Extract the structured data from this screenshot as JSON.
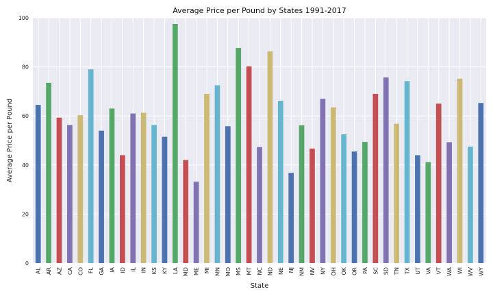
{
  "chart_data": {
    "type": "bar",
    "title": "Average Price per Pound by States 1991-2017",
    "xlabel": "State",
    "ylabel": "Average Price per Pound",
    "ylim": [
      0,
      100
    ],
    "yticks": [
      0,
      20,
      40,
      60,
      80,
      100
    ],
    "grid": true,
    "categories": [
      "AL",
      "AR",
      "AZ",
      "CA",
      "CO",
      "FL",
      "GA",
      "IA",
      "ID",
      "IL",
      "IN",
      "KS",
      "KY",
      "LA",
      "MD",
      "ME",
      "MI",
      "MN",
      "MO",
      "MS",
      "MT",
      "NC",
      "ND",
      "NE",
      "NJ",
      "NM",
      "NV",
      "NY",
      "OH",
      "OK",
      "OR",
      "PA",
      "SC",
      "SD",
      "TN",
      "TX",
      "UT",
      "VA",
      "VT",
      "WA",
      "WI",
      "WV",
      "WY"
    ],
    "values": [
      64.5,
      73.5,
      59.3,
      56.3,
      60.3,
      79,
      54,
      63,
      44,
      61,
      61.3,
      56.3,
      51.5,
      97.5,
      42,
      33.2,
      69,
      72.5,
      55.8,
      87.7,
      80.2,
      47.3,
      86.3,
      66.2,
      36.8,
      56.2,
      46.7,
      67,
      63.5,
      52.5,
      45.5,
      49.4,
      69,
      75.7,
      56.8,
      74.2,
      44,
      41.2,
      65,
      49.3,
      75.2,
      47.5,
      65.3
    ],
    "colors": [
      "#4c72b0",
      "#55a868",
      "#c44e52",
      "#8172b2",
      "#ccb974",
      "#64b5cd"
    ]
  }
}
